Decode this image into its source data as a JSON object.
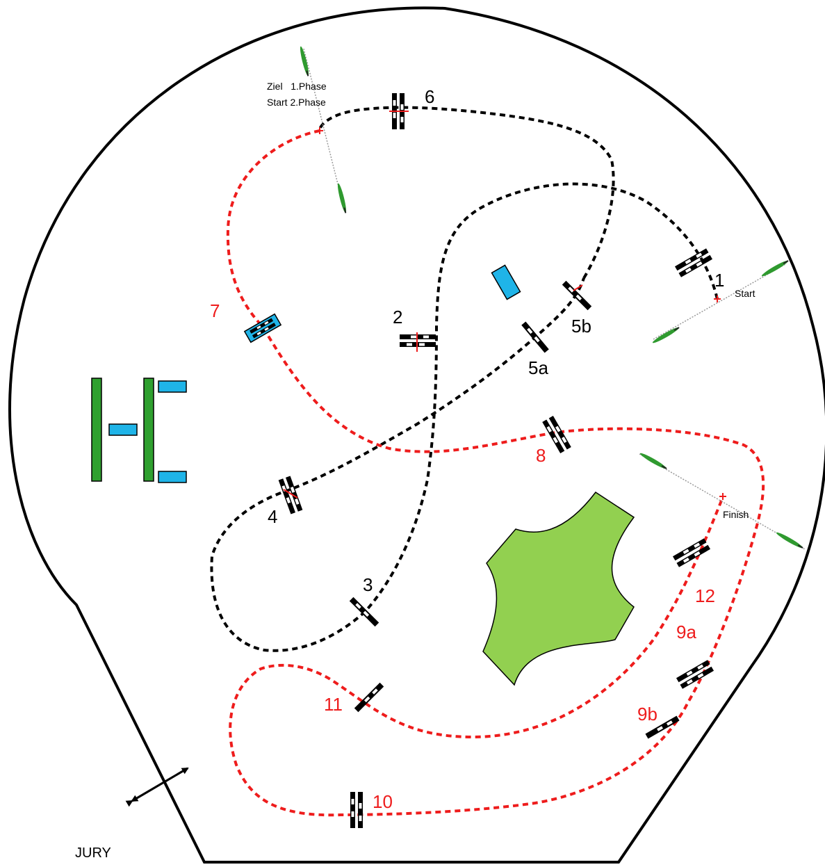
{
  "labels": {
    "ziel_phase1": "Ziel   1.Phase",
    "start_phase2": "Start 2.Phase",
    "start": "Start",
    "finish": "Finish",
    "jury": "JURY"
  },
  "obstacles": {
    "o1": "1",
    "o2": "2",
    "o3": "3",
    "o4": "4",
    "o5a": "5a",
    "o5b": "5b",
    "o6": "6",
    "o7": "7",
    "o8": "8",
    "o9a": "9a",
    "o9b": "9b",
    "o10": "10",
    "o11": "11",
    "o12": "12"
  },
  "colors": {
    "phase1_track": "#000000",
    "phase2_track": "#ee1c1c",
    "arena_border": "#000000",
    "flag": "#2f9a2f",
    "blue_block": "#1fb4e8",
    "green_bar": "#2fa02f",
    "island": "#92d050"
  }
}
